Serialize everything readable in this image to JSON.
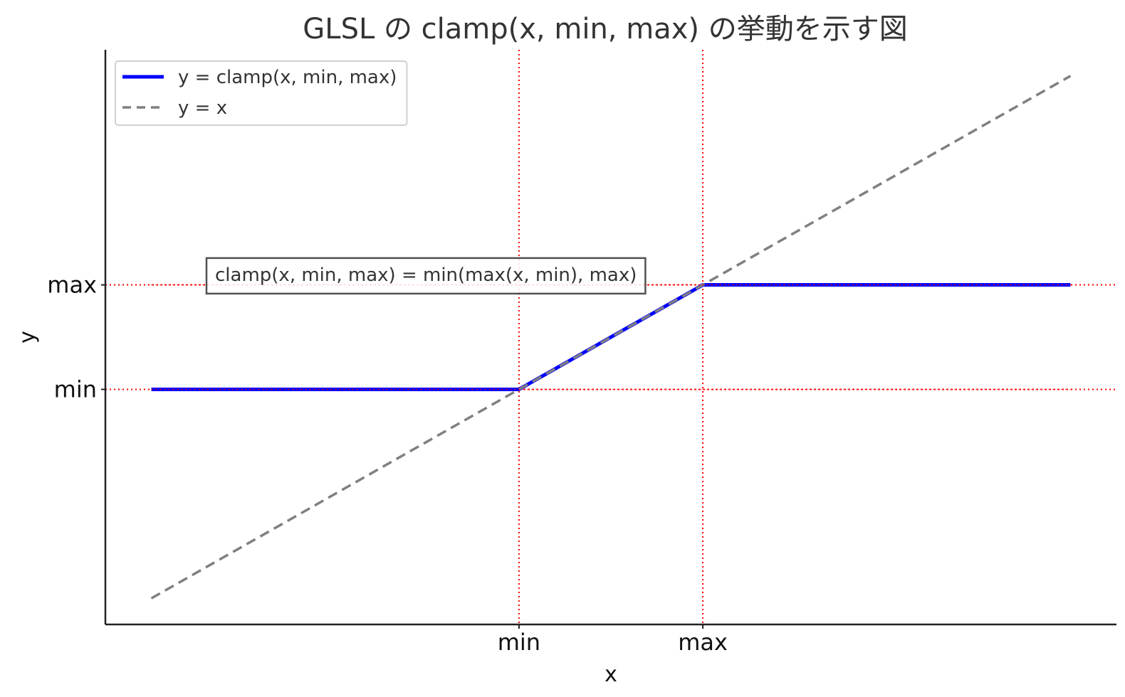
{
  "chart_data": {
    "type": "line",
    "title": "GLSL の clamp(x, min, max) の挙動を示す図",
    "xlabel": "x",
    "ylabel": "y",
    "clamp": {
      "min": 0,
      "max": 1
    },
    "x_ticks": [
      {
        "value": 0,
        "label": "min"
      },
      {
        "value": 1,
        "label": "max"
      }
    ],
    "y_ticks": [
      {
        "value": 0,
        "label": "min"
      },
      {
        "value": 1,
        "label": "max"
      }
    ],
    "xlim": [
      -2.25,
      3.25
    ],
    "ylim": [
      -2.25,
      3.25
    ],
    "grid": "off",
    "reference_lines": {
      "color": "#ff0000",
      "style": "dotted",
      "x": [
        0,
        1
      ],
      "y": [
        0,
        1
      ]
    },
    "series": [
      {
        "name": "y = clamp(x, min, max)",
        "color": "#0000ff",
        "style": "solid",
        "x": [
          -2,
          0,
          1,
          3
        ],
        "y": [
          0,
          0,
          1,
          1
        ]
      },
      {
        "name": "y = x",
        "color": "#808080",
        "style": "dashed",
        "x": [
          -2,
          3
        ],
        "y": [
          -2,
          3
        ]
      }
    ],
    "legend": {
      "position": "top-left"
    },
    "annotation": {
      "text": "clamp(x, min, max) = min(max(x, min), max)",
      "x": -1.7,
      "y": 1.1
    }
  }
}
